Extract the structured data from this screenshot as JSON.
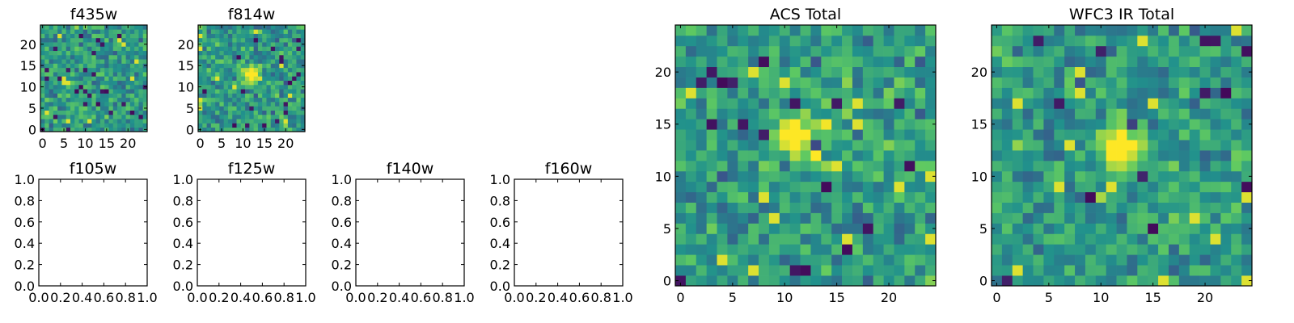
{
  "figure": {
    "colormap": [
      "#440154",
      "#3b528b",
      "#21918c",
      "#5ec962",
      "#fde725"
    ],
    "panels": [
      {
        "key": "f435w",
        "title": "f435w",
        "type": "heatmap",
        "image_cols": 25,
        "image_rows": 25,
        "xlim": [
          -0.5,
          24.5
        ],
        "ylim": [
          -0.5,
          24.5
        ],
        "xticks": [
          0,
          5,
          10,
          15,
          20
        ],
        "yticks": [
          0,
          5,
          10,
          15,
          20
        ],
        "xticklabels": [
          "0",
          "5",
          "10",
          "15",
          "20"
        ],
        "yticklabels": [
          "0",
          "5",
          "10",
          "15",
          "20"
        ],
        "source_center": null
      },
      {
        "key": "f814w",
        "title": "f814w",
        "type": "heatmap",
        "image_cols": 25,
        "image_rows": 25,
        "xlim": [
          -0.5,
          24.5
        ],
        "ylim": [
          -0.5,
          24.5
        ],
        "xticks": [
          0,
          5,
          10,
          15,
          20
        ],
        "yticks": [
          0,
          5,
          10,
          15,
          20
        ],
        "xticklabels": [
          "0",
          "5",
          "10",
          "15",
          "20"
        ],
        "yticklabels": [
          "0",
          "5",
          "10",
          "15",
          "20"
        ],
        "source_center": [
          12,
          13
        ]
      },
      {
        "key": "f105w",
        "title": "f105w",
        "type": "empty",
        "xlim": [
          0,
          1
        ],
        "ylim": [
          0,
          1
        ],
        "xticks": [
          0,
          0.2,
          0.4,
          0.6,
          0.8,
          1.0
        ],
        "yticks": [
          0,
          0.2,
          0.4,
          0.6,
          0.8,
          1.0
        ],
        "xticklabels": [
          "0.0",
          "0.2",
          "0.4",
          "0.6",
          "0.8",
          "1.0"
        ],
        "yticklabels": [
          "0.0",
          "0.2",
          "0.4",
          "0.6",
          "0.8",
          "1.0"
        ]
      },
      {
        "key": "f125w",
        "title": "f125w",
        "type": "empty",
        "xlim": [
          0,
          1
        ],
        "ylim": [
          0,
          1
        ],
        "xticks": [
          0,
          0.2,
          0.4,
          0.6,
          0.8,
          1.0
        ],
        "yticks": [
          0,
          0.2,
          0.4,
          0.6,
          0.8,
          1.0
        ],
        "xticklabels": [
          "0.0",
          "0.2",
          "0.4",
          "0.6",
          "0.8",
          "1.0"
        ],
        "yticklabels": [
          "0.0",
          "0.2",
          "0.4",
          "0.6",
          "0.8",
          "1.0"
        ]
      },
      {
        "key": "f140w",
        "title": "f140w",
        "type": "empty",
        "xlim": [
          0,
          1
        ],
        "ylim": [
          0,
          1
        ],
        "xticks": [
          0,
          0.2,
          0.4,
          0.6,
          0.8,
          1.0
        ],
        "yticks": [
          0,
          0.2,
          0.4,
          0.6,
          0.8,
          1.0
        ],
        "xticklabels": [
          "0.0",
          "0.2",
          "0.4",
          "0.6",
          "0.8",
          "1.0"
        ],
        "yticklabels": [
          "0.0",
          "0.2",
          "0.4",
          "0.6",
          "0.8",
          "1.0"
        ]
      },
      {
        "key": "f160w",
        "title": "f160w",
        "type": "empty",
        "xlim": [
          0,
          1
        ],
        "ylim": [
          0,
          1
        ],
        "xticks": [
          0,
          0.2,
          0.4,
          0.6,
          0.8,
          1.0
        ],
        "yticks": [
          0,
          0.2,
          0.4,
          0.6,
          0.8,
          1.0
        ],
        "xticklabels": [
          "0.0",
          "0.2",
          "0.4",
          "0.6",
          "0.8",
          "1.0"
        ],
        "yticklabels": [
          "0.0",
          "0.2",
          "0.4",
          "0.6",
          "0.8",
          "1.0"
        ]
      },
      {
        "key": "acs_total",
        "title": "ACS Total",
        "type": "heatmap",
        "image_cols": 25,
        "image_rows": 25,
        "xlim": [
          -0.5,
          24.5
        ],
        "ylim": [
          -0.5,
          24.5
        ],
        "xticks": [
          0,
          5,
          10,
          15,
          20
        ],
        "yticks": [
          0,
          5,
          10,
          15,
          20
        ],
        "xticklabels": [
          "0",
          "5",
          "10",
          "15",
          "20"
        ],
        "yticklabels": [
          "0",
          "5",
          "10",
          "15",
          "20"
        ],
        "source_center": [
          11,
          14
        ]
      },
      {
        "key": "wfc3_ir_total",
        "title": "WFC3 IR Total",
        "type": "heatmap",
        "image_cols": 25,
        "image_rows": 25,
        "xlim": [
          -0.5,
          24.5
        ],
        "ylim": [
          -0.5,
          24.5
        ],
        "xticks": [
          0,
          5,
          10,
          15,
          20
        ],
        "yticks": [
          0,
          5,
          10,
          15,
          20
        ],
        "xticklabels": [
          "0",
          "5",
          "10",
          "15",
          "20"
        ],
        "yticklabels": [
          "0",
          "5",
          "10",
          "15",
          "20"
        ],
        "source_center": [
          12,
          13
        ]
      }
    ]
  },
  "chart_data": [
    {
      "type": "heatmap",
      "title": "f435w",
      "xlabel": "",
      "ylabel": "",
      "xlim": [
        -0.5,
        24.5
      ],
      "ylim": [
        -0.5,
        24.5
      ],
      "grid": false
    },
    {
      "type": "heatmap",
      "title": "f814w",
      "xlabel": "",
      "ylabel": "",
      "xlim": [
        -0.5,
        24.5
      ],
      "ylim": [
        -0.5,
        24.5
      ],
      "grid": false,
      "annotations": [
        "bright source near (12, 13)"
      ]
    },
    {
      "type": "empty",
      "title": "f105w",
      "xlim": [
        0,
        1
      ],
      "ylim": [
        0,
        1
      ]
    },
    {
      "type": "empty",
      "title": "f125w",
      "xlim": [
        0,
        1
      ],
      "ylim": [
        0,
        1
      ]
    },
    {
      "type": "empty",
      "title": "f140w",
      "xlim": [
        0,
        1
      ],
      "ylim": [
        0,
        1
      ]
    },
    {
      "type": "empty",
      "title": "f160w",
      "xlim": [
        0,
        1
      ],
      "ylim": [
        0,
        1
      ]
    },
    {
      "type": "heatmap",
      "title": "ACS Total",
      "xlabel": "",
      "ylabel": "",
      "xlim": [
        -0.5,
        24.5
      ],
      "ylim": [
        -0.5,
        24.5
      ],
      "grid": false,
      "annotations": [
        "bright source near (11, 14)"
      ]
    },
    {
      "type": "heatmap",
      "title": "WFC3 IR Total",
      "xlabel": "",
      "ylabel": "",
      "xlim": [
        -0.5,
        24.5
      ],
      "ylim": [
        -0.5,
        24.5
      ],
      "grid": false,
      "annotations": [
        "bright source near (12, 13)"
      ]
    }
  ]
}
